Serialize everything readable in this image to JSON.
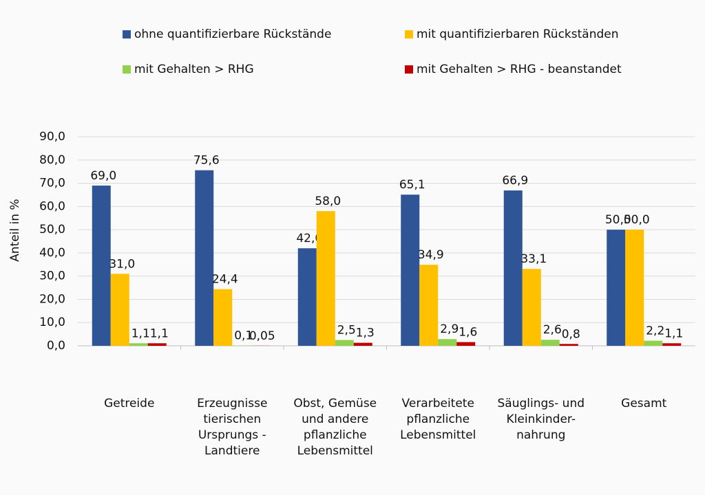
{
  "chart_data": {
    "type": "bar",
    "y_label": "Anteil in %",
    "categories": [
      [
        "Getreide"
      ],
      [
        "Erzeugnisse",
        "tierischen",
        "Ursprungs -",
        "Landtiere"
      ],
      [
        "Obst, Gemüse",
        "und andere",
        "pflanzliche",
        "Lebensmittel"
      ],
      [
        "Verarbeitete",
        "pflanzliche",
        "Lebensmittel"
      ],
      [
        "Säuglings- und",
        "Kleinkinder-",
        "nahrung"
      ],
      [
        "Gesamt"
      ]
    ],
    "series": [
      {
        "name": "ohne quantifizierbare Rückstände",
        "color": "#2f5597",
        "values": [
          69.0,
          75.6,
          42.0,
          65.1,
          66.9,
          50.0
        ],
        "value_labels": [
          "69,0",
          "75,6",
          "42,0",
          "65,1",
          "66,9",
          "50,0"
        ]
      },
      {
        "name": "mit quantifizierbaren Rückständen",
        "color": "#ffc000",
        "values": [
          31.0,
          24.4,
          58.0,
          34.9,
          33.1,
          50.0
        ],
        "value_labels": [
          "31,0",
          "24,4",
          "58,0",
          "34,9",
          "33,1",
          "50,0"
        ]
      },
      {
        "name": "mit Gehalten > RHG",
        "color": "#92d050",
        "values": [
          1.1,
          0.1,
          2.5,
          2.9,
          2.6,
          2.2
        ],
        "value_labels": [
          "1,1",
          "0,1",
          "2,5",
          "2,9",
          "2,6",
          "2,2"
        ]
      },
      {
        "name": "mit Gehalten > RHG - beanstandet",
        "color": "#c00000",
        "values": [
          1.1,
          0.05,
          1.3,
          1.6,
          0.8,
          1.1
        ],
        "value_labels": [
          "1,1",
          "0,05",
          "1,3",
          "1,6",
          "0,8",
          "1,1"
        ]
      }
    ],
    "ylim": [
      0,
      90
    ],
    "yticks": [
      {
        "value": 0,
        "label": "0,0"
      },
      {
        "value": 10,
        "label": "10,0"
      },
      {
        "value": 20,
        "label": "20,0"
      },
      {
        "value": 30,
        "label": "30,0"
      },
      {
        "value": 40,
        "label": "40,0"
      },
      {
        "value": 50,
        "label": "50,0"
      },
      {
        "value": 60,
        "label": "60,0"
      },
      {
        "value": 70,
        "label": "70,0"
      },
      {
        "value": 80,
        "label": "80,0"
      },
      {
        "value": 90,
        "label": "90,0"
      }
    ],
    "grid": true
  }
}
